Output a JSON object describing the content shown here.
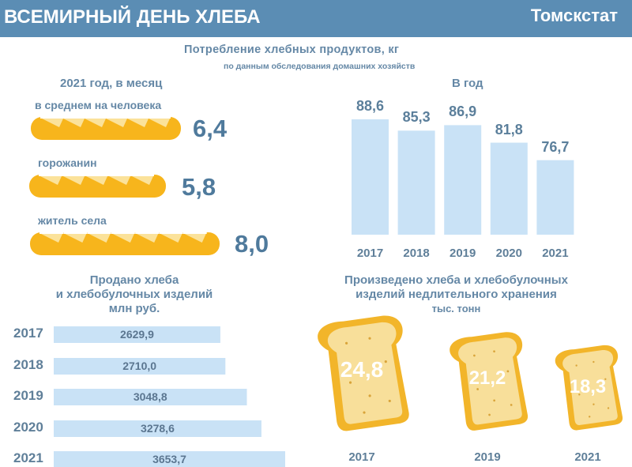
{
  "header": {
    "title": "ВСЕМИРНЫЙ ДЕНЬ ХЛЕБА",
    "org": "Томскстат"
  },
  "consumption": {
    "title": "Потребление хлебных продуктов, кг",
    "subtitle": "по данным обследования домашних хозяйств",
    "monthly_title": "2021 год, в месяц",
    "yearly_title": "В год"
  },
  "sold": {
    "title_line1": "Продано хлеба",
    "title_line2": "и хлебобулочных изделий",
    "unit": "млн руб."
  },
  "produced": {
    "title_line1": "Произведено хлеба и хлебобулочных",
    "title_line2": "изделий недлительного хранения",
    "unit": "тыс. тонн"
  },
  "colors": {
    "header": "#5b8db4",
    "bar": "#c9e2f6",
    "bread": "#f7b51c",
    "toast_crust": "#f2b52a",
    "toast_inner": "#f8df9a",
    "text": "#5d87a6"
  },
  "chart_data": [
    {
      "type": "bar",
      "name": "monthly-consumption-2021",
      "title": "2021 год, в месяц",
      "categories": [
        "в среднем на человека",
        "горожанин",
        "житель села"
      ],
      "values": [
        6.4,
        5.8,
        8.0
      ],
      "labels": [
        "6,4",
        "5,8",
        "8,0"
      ],
      "unit": "кг"
    },
    {
      "type": "bar",
      "name": "yearly-consumption",
      "title": "В год",
      "categories": [
        "2017",
        "2018",
        "2019",
        "2020",
        "2021"
      ],
      "values": [
        88.6,
        85.3,
        86.9,
        81.8,
        76.7
      ],
      "labels": [
        "88,6",
        "85,3",
        "86,9",
        "81,8",
        "76,7"
      ],
      "unit": "кг"
    },
    {
      "type": "bar",
      "name": "bread-sold",
      "orientation": "horizontal",
      "title": "Продано хлеба и хлебобулочных изделий, млн руб.",
      "categories": [
        "2017",
        "2018",
        "2019",
        "2020",
        "2021"
      ],
      "values": [
        2629.9,
        2710.0,
        3048.8,
        3278.6,
        3653.7
      ],
      "labels": [
        "2629,9",
        "2710,0",
        "3048,8",
        "3278,6",
        "3653,7"
      ]
    },
    {
      "type": "bar",
      "name": "bread-produced",
      "title": "Произведено хлеба и хлебобулочных изделий недлительного хранения, тыс. тонн",
      "categories": [
        "2017",
        "2019",
        "2021"
      ],
      "values": [
        24.8,
        21.2,
        18.3
      ],
      "labels": [
        "24,8",
        "21,2",
        "18,3"
      ]
    }
  ]
}
